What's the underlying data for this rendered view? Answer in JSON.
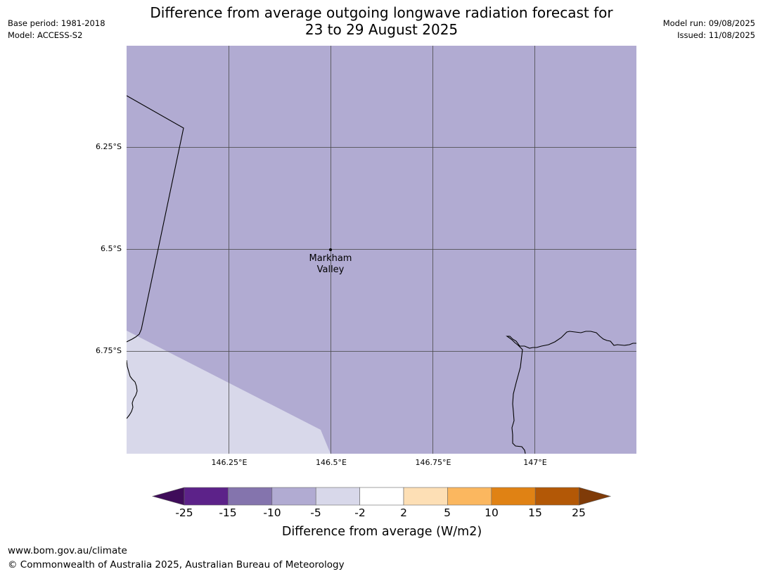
{
  "header": {
    "title_line1": "Difference from average outgoing longwave radiation forecast for",
    "title_line2": "23 to 29 August 2025",
    "base_period": "Base period: 1981-2018",
    "model": "Model: ACCESS-S2",
    "model_run": "Model run: 09/08/2025",
    "issued": "Issued: 11/08/2025"
  },
  "map": {
    "lat_labels": [
      "6.25°S",
      "6.5°S",
      "6.75°S"
    ],
    "lon_labels": [
      "146.25°E",
      "146.5°E",
      "146.75°E",
      "147°E"
    ],
    "place": {
      "name_line1": "Markham",
      "name_line2": "Valley"
    },
    "colors": {
      "dominant_fill": "#b1abd2",
      "secondary_fill": "#d8d8ea",
      "grid_line": "#4a4a4a",
      "coastline": "#000000"
    }
  },
  "colorbar": {
    "label": "Difference from average (W/m2)",
    "ticks": [
      "-25",
      "-15",
      "-10",
      "-5",
      "-2",
      "2",
      "5",
      "10",
      "15",
      "25"
    ],
    "colors": [
      "#3f0c5a",
      "#5c2289",
      "#8474ad",
      "#b1abd2",
      "#d8d8ea",
      "#ffffff",
      "#fddfb5",
      "#fbb75f",
      "#e08214",
      "#b35806",
      "#7f3b08"
    ]
  },
  "footer": {
    "url": "www.bom.gov.au/climate",
    "copyright": "© Commonwealth of Australia 2025, Australian Bureau of Meteorology"
  }
}
